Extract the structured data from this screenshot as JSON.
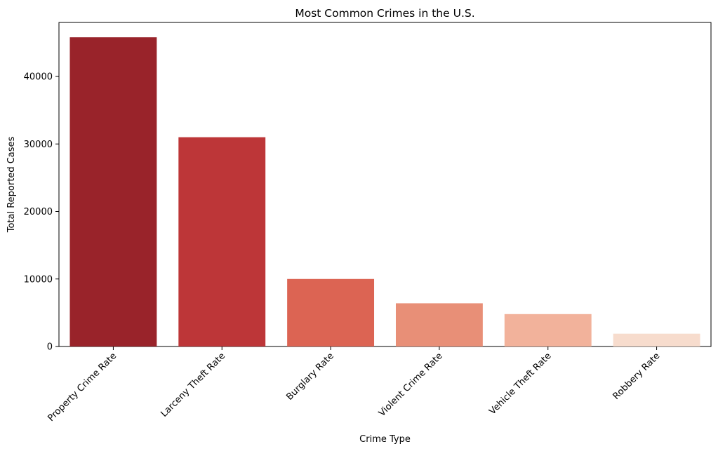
{
  "chart_data": {
    "type": "bar",
    "title": "Most Common Crimes in the U.S.",
    "xlabel": "Crime Type",
    "ylabel": "Total Reported Cases",
    "categories": [
      "Property Crime Rate",
      "Larceny Theft Rate",
      "Burglary Rate",
      "Violent Crime Rate",
      "Vehicle Theft Rate",
      "Robbery Rate"
    ],
    "values": [
      45800,
      31000,
      10000,
      6400,
      4800,
      1900
    ],
    "colors": [
      "#99232a",
      "#bd3638",
      "#dc6453",
      "#e88f77",
      "#f2b29b",
      "#f7dccd"
    ],
    "ylim": [
      0,
      48000
    ],
    "yticks": [
      0,
      10000,
      20000,
      30000,
      40000
    ],
    "ytick_labels": [
      "0",
      "10000",
      "20000",
      "30000",
      "40000"
    ],
    "grid": false,
    "legend": "none"
  }
}
